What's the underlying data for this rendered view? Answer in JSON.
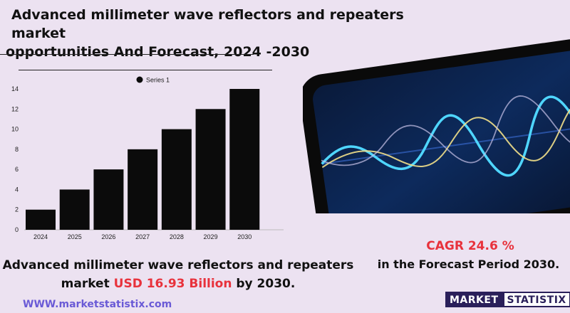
{
  "header": {
    "title_line1": "Advanced millimeter wave reflectors and repeaters market",
    "title_line2": "opportunities And Forecast, 2024 -2030"
  },
  "chart_data": {
    "type": "bar",
    "categories": [
      "2024",
      "2025",
      "2026",
      "2027",
      "2028",
      "2029",
      "2030"
    ],
    "series": [
      {
        "name": "Series 1",
        "values": [
          2,
          4,
          6,
          8,
          10,
          12,
          14
        ]
      }
    ],
    "yticks": [
      0,
      2,
      4,
      6,
      8,
      10,
      12,
      14
    ],
    "ylim": [
      0,
      14
    ],
    "legend": "top-center",
    "grid": false,
    "bar_color": "#0b0b0b"
  },
  "summary": {
    "line1": "Advanced millimeter wave reflectors and repeaters",
    "line2_prefix": "market",
    "line2_value": "USD 16.93 Billion",
    "line2_suffix": "by 2030."
  },
  "cagr": {
    "value": "CAGR 24.6 %",
    "period": "in the  Forecast Period  2030."
  },
  "footer": {
    "url": "WWW.marketstatistix.com",
    "logo_part1": "MARKET",
    "logo_part2": "STATISTIX"
  },
  "colors": {
    "accent_red": "#e8323c",
    "url_purple": "#6a5ad6",
    "logo_navy": "#2a1f5a",
    "background": "#ece2f1"
  },
  "image": {
    "icon": "waveform-phone-icon"
  }
}
